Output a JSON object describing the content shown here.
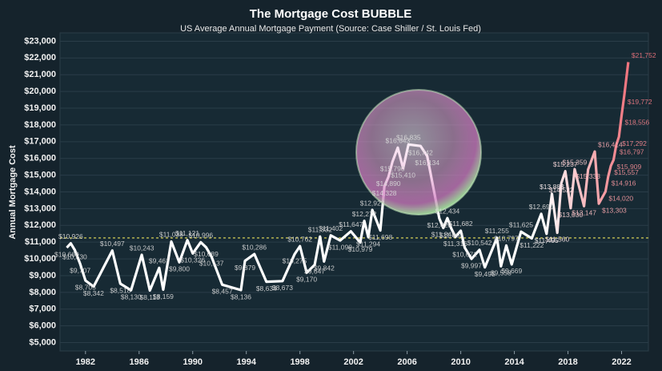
{
  "chart_data": {
    "type": "line",
    "title": "The Mortgage Cost BUBBLE",
    "subtitle": "US  Average Annual Mortgage Payment (Source: Case Shiller / St. Louis Fed)",
    "y_label": "Annual Mortgage Cost",
    "x": [
      1980.6,
      1980.9,
      1981.2,
      1981.6,
      1982.0,
      1982.6,
      1984.0,
      1984.6,
      1985.4,
      1986.2,
      1986.8,
      1987.5,
      1987.8,
      1988.4,
      1989.0,
      1989.6,
      1990.0,
      1990.6,
      1991.0,
      1991.4,
      1992.2,
      1993.6,
      1993.9,
      1994.6,
      1995.5,
      1996.7,
      1997.6,
      1998.0,
      1998.5,
      1999.1,
      1999.5,
      1999.8,
      2000.3,
      2001.0,
      2001.8,
      2002.5,
      2002.8,
      2003.1,
      2003.4,
      2004.0,
      2004.3,
      2004.6,
      2004.9,
      2005.3,
      2005.7,
      2006.1,
      2007.0,
      2007.5,
      2008.4,
      2008.7,
      2009.0,
      2009.3,
      2009.6,
      2010.0,
      2010.3,
      2010.8,
      2011.4,
      2011.8,
      2012.7,
      2013.0,
      2013.4,
      2013.8,
      2014.5,
      2015.3,
      2016.0,
      2016.4,
      2016.8,
      2017.2,
      2017.5,
      2017.8,
      2018.2,
      2018.5,
      2019.2,
      2019.5,
      2020.0,
      2020.3,
      2020.8,
      2021.0,
      2021.2,
      2021.4,
      2021.6,
      2021.8,
      2022.0,
      2022.2,
      2022.5
    ],
    "series": [
      {
        "name": "Annual Mortgage Cost",
        "color": "#ffffff",
        "end_color": "#f0707a",
        "values": [
          10669,
          10926,
          10530,
          9707,
          8705,
          8342,
          10497,
          8518,
          8130,
          10243,
          8113,
          9461,
          8159,
          11038,
          9800,
          11121,
          10326,
          10996,
          10689,
          10137,
          8457,
          8136,
          9879,
          10286,
          8634,
          8673,
          10275,
          10762,
          9170,
          9647,
          11332,
          9842,
          11402,
          11099,
          11647,
          10979,
          12272,
          11294,
          12922,
          11698,
          14328,
          14890,
          15790,
          16643,
          15410,
          16835,
          16742,
          16134,
          12420,
          11848,
          12434,
          11802,
          11316,
          11682,
          10671,
          9997,
          10542,
          9495,
          11255,
          9558,
          10797,
          9669,
          11625,
          11222,
          12690,
          11495,
          13883,
          11560,
          14522,
          15237,
          13030,
          15359,
          13147,
          15333,
          16414,
          13303,
          14020,
          14916,
          15557,
          15909,
          16797,
          17292,
          18556,
          19772,
          21752
        ],
        "value_labels": [
          "$10,669",
          "$10,926",
          "$10,530",
          "$9,707",
          "$8,705",
          "$8,342",
          "$10,497",
          "$8,518",
          "$8,130",
          "$10,243",
          "$8,113",
          "$9,461",
          "$8,159",
          "$11,038",
          "$9,800",
          "$11,121",
          "$10,326",
          "$10,996",
          "$10,689",
          "$10,137",
          "$8,457",
          "$8,136",
          "$9,879",
          "$10,286",
          "$8,634",
          "$8,673",
          "$10,275",
          "$10,762",
          "$9,170",
          "$9,647",
          "$11,332",
          "$9,842",
          "$11,402",
          "$11,099",
          "$11,647",
          "$10,979",
          "$12,272",
          "$11,294",
          "$12,922",
          "$11,698",
          "$14,328",
          "$14,890",
          "$15,790",
          "$16,643",
          "$15,410",
          "$16,835",
          "$16,742",
          "$16,134",
          "$12,420",
          "$11,848",
          "$12,434",
          "$11,802",
          "$11,316",
          "$11,682",
          "$10,671",
          "$9,997",
          "$10,542",
          "$9,495",
          "$11,255",
          "$9,558",
          "$10,797",
          "$9,669",
          "$11,625",
          "$11,222",
          "$12,690",
          "$11,495",
          "$13,883",
          "$11,560",
          "$14,522",
          "$15,237",
          "$13,030",
          "$15,359",
          "$13,147",
          "$15,333",
          "$16,414",
          "$13,303",
          "$14,020",
          "$14,916",
          "$15,557",
          "$15,909",
          "$16,797",
          "$17,292",
          "$18,556",
          "$19,772",
          "$21,752"
        ]
      }
    ],
    "reference_line": 11250,
    "reference_color": "#e8e05a",
    "xlim": [
      1980.1,
      2024
    ],
    "xticks": [
      1982,
      1986,
      1990,
      1994,
      1998,
      2002,
      2006,
      2010,
      2014,
      2018,
      2022
    ],
    "ylim": [
      4500,
      23500
    ],
    "yticks": [
      {
        "value": 5000,
        "label": "$5,000"
      },
      {
        "value": 6000,
        "label": "$6,000"
      },
      {
        "value": 7000,
        "label": "$7,000"
      },
      {
        "value": 8000,
        "label": "$8,000"
      },
      {
        "value": 9000,
        "label": "$9,000"
      },
      {
        "value": 10000,
        "label": "$10,000"
      },
      {
        "value": 11000,
        "label": "$11,000"
      },
      {
        "value": 12000,
        "label": "$12,000"
      },
      {
        "value": 13000,
        "label": "$13,000"
      },
      {
        "value": 14000,
        "label": "$14,000"
      },
      {
        "value": 15000,
        "label": "$15,000"
      },
      {
        "value": 16000,
        "label": "$16,000"
      },
      {
        "value": 17000,
        "label": "$17,000"
      },
      {
        "value": 18000,
        "label": "$18,000"
      },
      {
        "value": 19000,
        "label": "$19,000"
      },
      {
        "value": 20000,
        "label": "$20,000"
      },
      {
        "value": 21000,
        "label": "$21,000"
      },
      {
        "value": 22000,
        "label": "$22,000"
      },
      {
        "value": 23000,
        "label": "$23,000"
      }
    ],
    "grid": true
  }
}
